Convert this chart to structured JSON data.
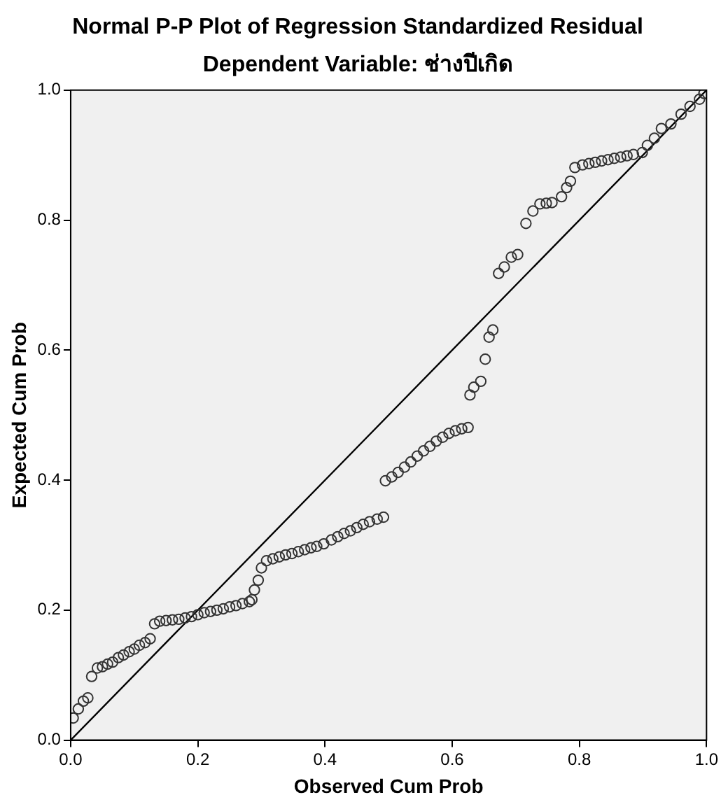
{
  "chart_data": {
    "type": "scatter",
    "title": "Normal P-P Plot of Regression Standardized Residual",
    "subtitle": "Dependent Variable: ช่างปีเกิด",
    "xlabel": "Observed Cum Prob",
    "ylabel": "Expected Cum Prob",
    "xlim": [
      0,
      1
    ],
    "ylim": [
      0,
      1
    ],
    "xticks": [
      {
        "value": 0,
        "label": "0.0"
      },
      {
        "value": 0.2,
        "label": "0.2"
      },
      {
        "value": 0.4,
        "label": "0.4"
      },
      {
        "value": 0.6,
        "label": "0.6"
      },
      {
        "value": 0.8,
        "label": "0.8"
      },
      {
        "value": 1,
        "label": "1.0"
      }
    ],
    "yticks": [
      {
        "value": 0,
        "label": "0.0"
      },
      {
        "value": 0.2,
        "label": "0.2"
      },
      {
        "value": 0.4,
        "label": "0.4"
      },
      {
        "value": 0.6,
        "label": "0.6"
      },
      {
        "value": 0.8,
        "label": "0.8"
      },
      {
        "value": 1,
        "label": "1.0"
      }
    ],
    "grid": false,
    "legend": false,
    "marker": "circle",
    "series": [
      {
        "type": "scatter",
        "color": "#333333",
        "x": [
          0.004,
          0.012,
          0.02,
          0.027,
          0.033,
          0.042,
          0.05,
          0.058,
          0.066,
          0.075,
          0.083,
          0.092,
          0.1,
          0.108,
          0.117,
          0.125,
          0.132,
          0.14,
          0.15,
          0.16,
          0.17,
          0.18,
          0.19,
          0.2,
          0.21,
          0.22,
          0.23,
          0.24,
          0.25,
          0.26,
          0.27,
          0.281,
          0.285,
          0.289,
          0.295,
          0.3,
          0.308,
          0.318,
          0.328,
          0.338,
          0.348,
          0.358,
          0.368,
          0.378,
          0.387,
          0.398,
          0.41,
          0.42,
          0.43,
          0.44,
          0.45,
          0.46,
          0.47,
          0.482,
          0.492,
          0.495,
          0.505,
          0.515,
          0.525,
          0.535,
          0.545,
          0.555,
          0.565,
          0.575,
          0.585,
          0.595,
          0.605,
          0.615,
          0.625,
          0.628,
          0.634,
          0.645,
          0.652,
          0.658,
          0.664,
          0.673,
          0.682,
          0.693,
          0.703,
          0.716,
          0.727,
          0.738,
          0.748,
          0.757,
          0.772,
          0.78,
          0.786,
          0.793,
          0.805,
          0.815,
          0.825,
          0.835,
          0.845,
          0.855,
          0.865,
          0.875,
          0.885,
          0.899,
          0.907,
          0.918,
          0.929,
          0.944,
          0.96,
          0.974,
          0.989,
          0.996
        ],
        "values": [
          0.034,
          0.048,
          0.06,
          0.065,
          0.098,
          0.111,
          0.113,
          0.117,
          0.12,
          0.127,
          0.131,
          0.136,
          0.14,
          0.146,
          0.15,
          0.156,
          0.179,
          0.183,
          0.184,
          0.185,
          0.186,
          0.188,
          0.19,
          0.193,
          0.196,
          0.198,
          0.2,
          0.202,
          0.205,
          0.207,
          0.21,
          0.213,
          0.216,
          0.231,
          0.246,
          0.265,
          0.276,
          0.279,
          0.282,
          0.285,
          0.287,
          0.29,
          0.293,
          0.296,
          0.298,
          0.302,
          0.308,
          0.313,
          0.318,
          0.322,
          0.327,
          0.332,
          0.336,
          0.34,
          0.343,
          0.399,
          0.405,
          0.412,
          0.42,
          0.428,
          0.437,
          0.445,
          0.452,
          0.46,
          0.466,
          0.472,
          0.476,
          0.479,
          0.481,
          0.531,
          0.543,
          0.552,
          0.586,
          0.62,
          0.631,
          0.718,
          0.728,
          0.743,
          0.747,
          0.795,
          0.814,
          0.825,
          0.826,
          0.827,
          0.836,
          0.85,
          0.86,
          0.881,
          0.885,
          0.887,
          0.889,
          0.891,
          0.893,
          0.895,
          0.897,
          0.899,
          0.901,
          0.904,
          0.915,
          0.926,
          0.941,
          0.948,
          0.963,
          0.975,
          0.986,
          0.995
        ]
      },
      {
        "type": "line",
        "color": "#000000",
        "marker": "none",
        "x": [
          0,
          1
        ],
        "values": [
          0,
          1
        ]
      }
    ]
  }
}
